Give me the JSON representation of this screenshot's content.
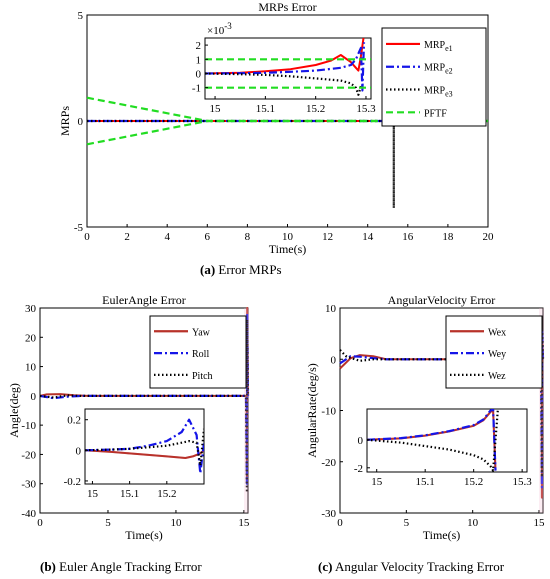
{
  "captions": {
    "a_letter": "(a)",
    "a_text": " Error MRPs",
    "b_letter": "(b)",
    "b_text": " Euler Angle Tracking Error",
    "c_letter": "(c)",
    "c_text": " Angular Velocity Tracking Error"
  },
  "colors": {
    "red": "#ff0000",
    "blue": "#1515e8",
    "black": "#000000",
    "green": "#22dd22",
    "brown": "#b8322a",
    "pink": "#f4b8d0"
  },
  "chart_data": [
    {
      "id": "a",
      "type": "line",
      "title": "MRPs Error",
      "xlabel": "Time(s)",
      "ylabel": "MRPs",
      "xlim": [
        0,
        20
      ],
      "ylim": [
        -5,
        5
      ],
      "xticks": [
        "0",
        "2",
        "4",
        "6",
        "8",
        "10",
        "12",
        "14",
        "16",
        "18",
        "20"
      ],
      "yticks": [
        "-5",
        "0",
        "5"
      ],
      "legend_position": "top-right",
      "series": [
        {
          "name": "MRP",
          "sub": "e1",
          "color": "red",
          "style": "solid",
          "x": [
            0,
            6,
            15.2,
            15.3
          ],
          "y": [
            0,
            0,
            0,
            0
          ]
        },
        {
          "name": "MRP",
          "sub": "e2",
          "color": "blue",
          "style": "dashdot",
          "x": [
            0,
            6,
            15.2,
            15.3
          ],
          "y": [
            0,
            0,
            0,
            0
          ]
        },
        {
          "name": "MRP",
          "sub": "e3",
          "color": "black",
          "style": "dotted",
          "x": [
            0,
            6,
            15.3,
            15.3,
            15.3
          ],
          "y": [
            0,
            0,
            0,
            -4.1,
            0
          ]
        },
        {
          "name": "PFTF",
          "color": "green",
          "style": "dashed",
          "x": [
            0,
            6,
            20
          ],
          "y": [
            1.1,
            0,
            0
          ],
          "mirror": true
        }
      ],
      "inset": {
        "xlim": [
          14.98,
          15.31
        ],
        "ylim": [
          -1.8,
          2.5
        ],
        "xticks": [
          "15",
          "15.1",
          "15.2",
          "15.3"
        ],
        "yticks": [
          "-1",
          "0",
          "1",
          "2"
        ],
        "exponent_label": "×10",
        "exponent": "-3",
        "series": [
          {
            "color": "red",
            "style": "solid",
            "x": [
              14.98,
              15.05,
              15.1,
              15.15,
              15.2,
              15.23,
              15.25,
              15.27,
              15.28,
              15.285,
              15.29,
              15.295
            ],
            "y": [
              0,
              0.05,
              0.15,
              0.3,
              0.6,
              0.9,
              1.3,
              0.8,
              0.4,
              0.2,
              1.2,
              2.5
            ]
          },
          {
            "color": "blue",
            "style": "dashdot",
            "x": [
              14.98,
              15.05,
              15.1,
              15.15,
              15.2,
              15.25,
              15.27,
              15.28,
              15.29,
              15.293,
              15.296
            ],
            "y": [
              0,
              0.02,
              0.05,
              0.12,
              0.2,
              0.4,
              0.6,
              1.0,
              1.8,
              -1.2,
              2.2
            ]
          },
          {
            "color": "black",
            "style": "dotted",
            "x": [
              14.98,
              15.05,
              15.1,
              15.15,
              15.2,
              15.25,
              15.27,
              15.28,
              15.285,
              15.29
            ],
            "y": [
              0,
              -0.05,
              -0.1,
              -0.2,
              -0.35,
              -0.5,
              -0.7,
              -1.0,
              -1.5,
              -0.9
            ]
          },
          {
            "color": "green",
            "style": "dashed",
            "x": [
              14.98,
              15.31
            ],
            "y": [
              1,
              1
            ]
          },
          {
            "color": "green",
            "style": "dashed",
            "x": [
              14.98,
              15.31
            ],
            "y": [
              -1,
              -1
            ]
          }
        ]
      }
    },
    {
      "id": "b",
      "type": "line",
      "title": "EulerAngle  Error",
      "xlabel": "Time(s)",
      "ylabel": "Angle(deg)",
      "xlim": [
        0,
        15.3
      ],
      "ylim": [
        -40,
        30
      ],
      "xticks": [
        "0",
        "5",
        "10",
        "15"
      ],
      "yticks": [
        "30",
        "20",
        "10",
        "0",
        "-10",
        "-20",
        "-30",
        "-40"
      ],
      "legend_position": "top-right",
      "series": [
        {
          "name": "Yaw",
          "color": "brown",
          "style": "solid",
          "x": [
            0,
            0.5,
            1.5,
            2.5,
            3.5,
            15.15,
            15.2,
            15.22,
            15.24,
            15.3
          ],
          "y": [
            0,
            0.5,
            0.6,
            0.2,
            0,
            0,
            0,
            -28,
            30,
            0
          ]
        },
        {
          "name": "Roll",
          "color": "blue",
          "style": "dashdot",
          "x": [
            0,
            1,
            2,
            3,
            15.15,
            15.22,
            15.24,
            15.3
          ],
          "y": [
            0,
            -0.8,
            -0.3,
            0,
            0,
            -30,
            28,
            0
          ]
        },
        {
          "name": "Pitch",
          "color": "black",
          "style": "dotted",
          "x": [
            0,
            1,
            2,
            3,
            15.15,
            15.22,
            15.24,
            15.3
          ],
          "y": [
            0,
            -0.6,
            0.2,
            0,
            0,
            -33,
            26,
            0
          ]
        }
      ],
      "inset": {
        "xlim": [
          14.98,
          15.3
        ],
        "ylim": [
          -0.22,
          0.27
        ],
        "xticks": [
          "15",
          "15.1",
          "15.2"
        ],
        "yticks": [
          "0.2",
          "0",
          "-0.2"
        ],
        "series": [
          {
            "color": "pink",
            "style": "solid",
            "x": [
              14.98,
              15.05,
              15.1,
              15.15,
              15.2,
              15.25,
              15.27,
              15.29,
              15.3
            ],
            "y": [
              0,
              -0.01,
              -0.02,
              -0.03,
              -0.04,
              -0.05,
              -0.04,
              -0.02,
              0
            ]
          },
          {
            "color": "brown",
            "style": "solid",
            "x": [
              14.98,
              15.05,
              15.1,
              15.15,
              15.2,
              15.25,
              15.27,
              15.29,
              15.3
            ],
            "y": [
              0,
              -0.01,
              -0.02,
              -0.03,
              -0.04,
              -0.05,
              -0.04,
              -0.02,
              0
            ]
          },
          {
            "color": "blue",
            "style": "dashdot",
            "x": [
              14.98,
              15.05,
              15.1,
              15.15,
              15.2,
              15.24,
              15.26,
              15.28,
              15.29,
              15.3
            ],
            "y": [
              0,
              0.005,
              0.01,
              0.03,
              0.06,
              0.12,
              0.2,
              0.1,
              -0.15,
              0.05
            ]
          },
          {
            "color": "black",
            "style": "dotted",
            "x": [
              14.98,
              15.05,
              15.1,
              15.15,
              15.2,
              15.24,
              15.26,
              15.28,
              15.29,
              15.3
            ],
            "y": [
              0,
              0.005,
              0.01,
              0.02,
              0.03,
              0.05,
              0.06,
              0.05,
              -0.1,
              0.14
            ]
          }
        ]
      }
    },
    {
      "id": "c",
      "type": "line",
      "title": "AngularVelocity  Error",
      "xlabel": "Time(s)",
      "ylabel": "AngularRate(deg/s)",
      "xlim": [
        0,
        15.3
      ],
      "ylim": [
        -30,
        10
      ],
      "xticks": [
        "0",
        "5",
        "10",
        "15"
      ],
      "yticks": [
        "10",
        "0",
        "-10",
        "-20",
        "-30"
      ],
      "legend_position": "top-right",
      "series": [
        {
          "name": "Wex",
          "color": "brown",
          "style": "solid",
          "x": [
            0,
            0.8,
            1.5,
            2.5,
            3.5,
            15.15,
            15.2,
            15.22,
            15.24,
            15.3
          ],
          "y": [
            -1.8,
            0.2,
            0.8,
            0.6,
            0,
            0,
            0,
            -27,
            5,
            0
          ]
        },
        {
          "name": "Wey",
          "color": "blue",
          "style": "dashdot",
          "x": [
            0,
            0.8,
            1.5,
            2.5,
            3.5,
            15.15,
            15.22,
            15.24,
            15.3
          ],
          "y": [
            -0.8,
            0.6,
            0.5,
            0.2,
            0,
            0,
            -25,
            6,
            0
          ]
        },
        {
          "name": "Wez",
          "color": "black",
          "style": "dotted",
          "x": [
            0,
            0.5,
            1.5,
            2.5,
            15.15,
            15.22,
            15.24,
            15.3
          ],
          "y": [
            1.8,
            0.5,
            -0.3,
            0,
            0,
            -23,
            8,
            0
          ]
        }
      ],
      "inset": {
        "xlim": [
          14.98,
          15.31
        ],
        "ylim": [
          -2.3,
          2.2
        ],
        "xticks": [
          "15",
          "15.1",
          "15.2",
          "15.3"
        ],
        "yticks": [
          "0",
          "-2"
        ],
        "series": [
          {
            "color": "pink",
            "style": "solid",
            "x": [
              14.98,
              15.05,
              15.1,
              15.15,
              15.2,
              15.22,
              15.235,
              15.24,
              15.245
            ],
            "y": [
              0,
              0.1,
              0.3,
              0.6,
              1.0,
              1.4,
              2.0,
              2.1,
              -2.2
            ]
          },
          {
            "color": "brown",
            "style": "solid",
            "x": [
              14.98,
              15.05,
              15.1,
              15.15,
              15.2,
              15.22,
              15.235,
              15.24,
              15.245
            ],
            "y": [
              0,
              0.1,
              0.3,
              0.6,
              1.0,
              1.4,
              2.0,
              2.1,
              -2.2
            ]
          },
          {
            "color": "blue",
            "style": "dashdot",
            "x": [
              14.98,
              15.05,
              15.1,
              15.15,
              15.2,
              15.22,
              15.235,
              15.24,
              15.245
            ],
            "y": [
              0,
              0.12,
              0.32,
              0.62,
              1.05,
              1.45,
              2.1,
              2.2,
              -2.2
            ]
          },
          {
            "color": "black",
            "style": "dotted",
            "x": [
              14.98,
              15.05,
              15.1,
              15.15,
              15.2,
              15.22,
              15.235,
              15.24,
              15.25
            ],
            "y": [
              0,
              -0.2,
              -0.45,
              -0.7,
              -1.1,
              -1.4,
              -1.9,
              -2.2,
              2.2
            ]
          }
        ]
      }
    }
  ]
}
